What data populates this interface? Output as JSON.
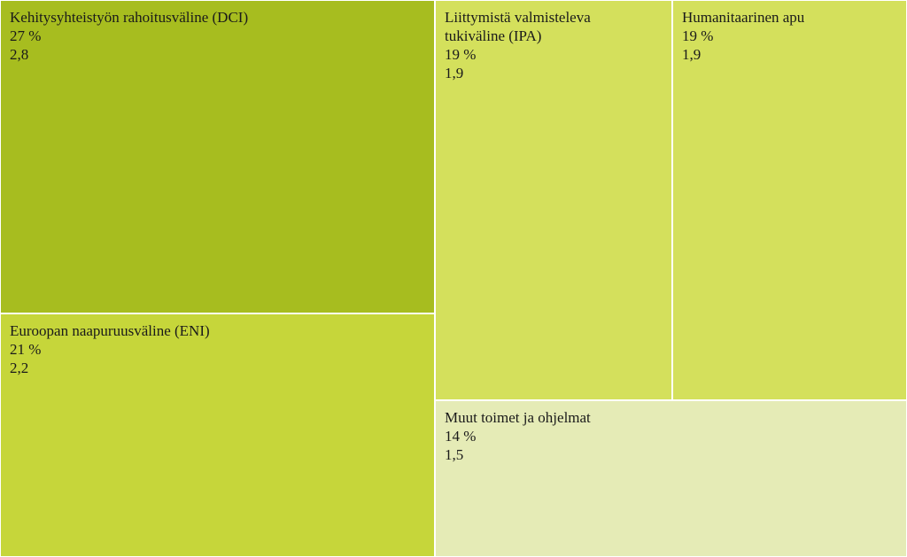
{
  "chart_data": {
    "type": "treemap",
    "items": [
      {
        "name": "Kehitysyhteistyön rahoitusväline (DCI)",
        "percent": "27 %",
        "value": 2.8,
        "value_label": "2,8",
        "color": "#a7bd1f"
      },
      {
        "name": "Euroopan naapuruusväline (ENI)",
        "percent": "21 %",
        "value": 2.2,
        "value_label": "2,2",
        "color": "#c6d63a"
      },
      {
        "name": "Liittymistä valmisteleva tukiväline (IPA)",
        "percent": "19 %",
        "value": 1.9,
        "value_label": "1,9",
        "color": "#d4e05c"
      },
      {
        "name": "Humanitaarinen apu",
        "percent": "19 %",
        "value": 1.9,
        "value_label": "1,9",
        "color": "#d4e05c"
      },
      {
        "name": "Muut toimet ja ohjelmat",
        "percent": "14 %",
        "value": 1.5,
        "value_label": "1,5",
        "color": "#e5ebb6"
      }
    ]
  }
}
